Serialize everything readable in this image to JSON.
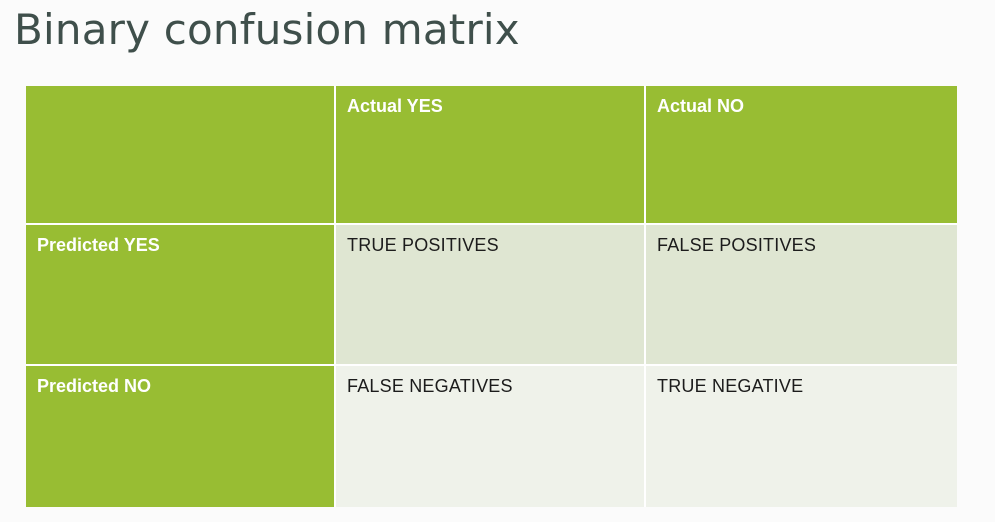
{
  "title": "Binary confusion matrix",
  "matrix": {
    "column_headers": [
      "",
      "Actual YES",
      "Actual NO"
    ],
    "rows": [
      {
        "header": "Predicted YES",
        "cells": [
          "TRUE POSITIVES",
          "FALSE POSITIVES"
        ]
      },
      {
        "header": "Predicted NO",
        "cells": [
          "FALSE NEGATIVES",
          "TRUE NEGATIVE"
        ]
      }
    ]
  },
  "colors": {
    "header_green": "#98bd33",
    "row_predicted_yes": "#dfe6d2",
    "row_predicted_no": "#eff2ea",
    "title_text": "#3f4f4b"
  }
}
